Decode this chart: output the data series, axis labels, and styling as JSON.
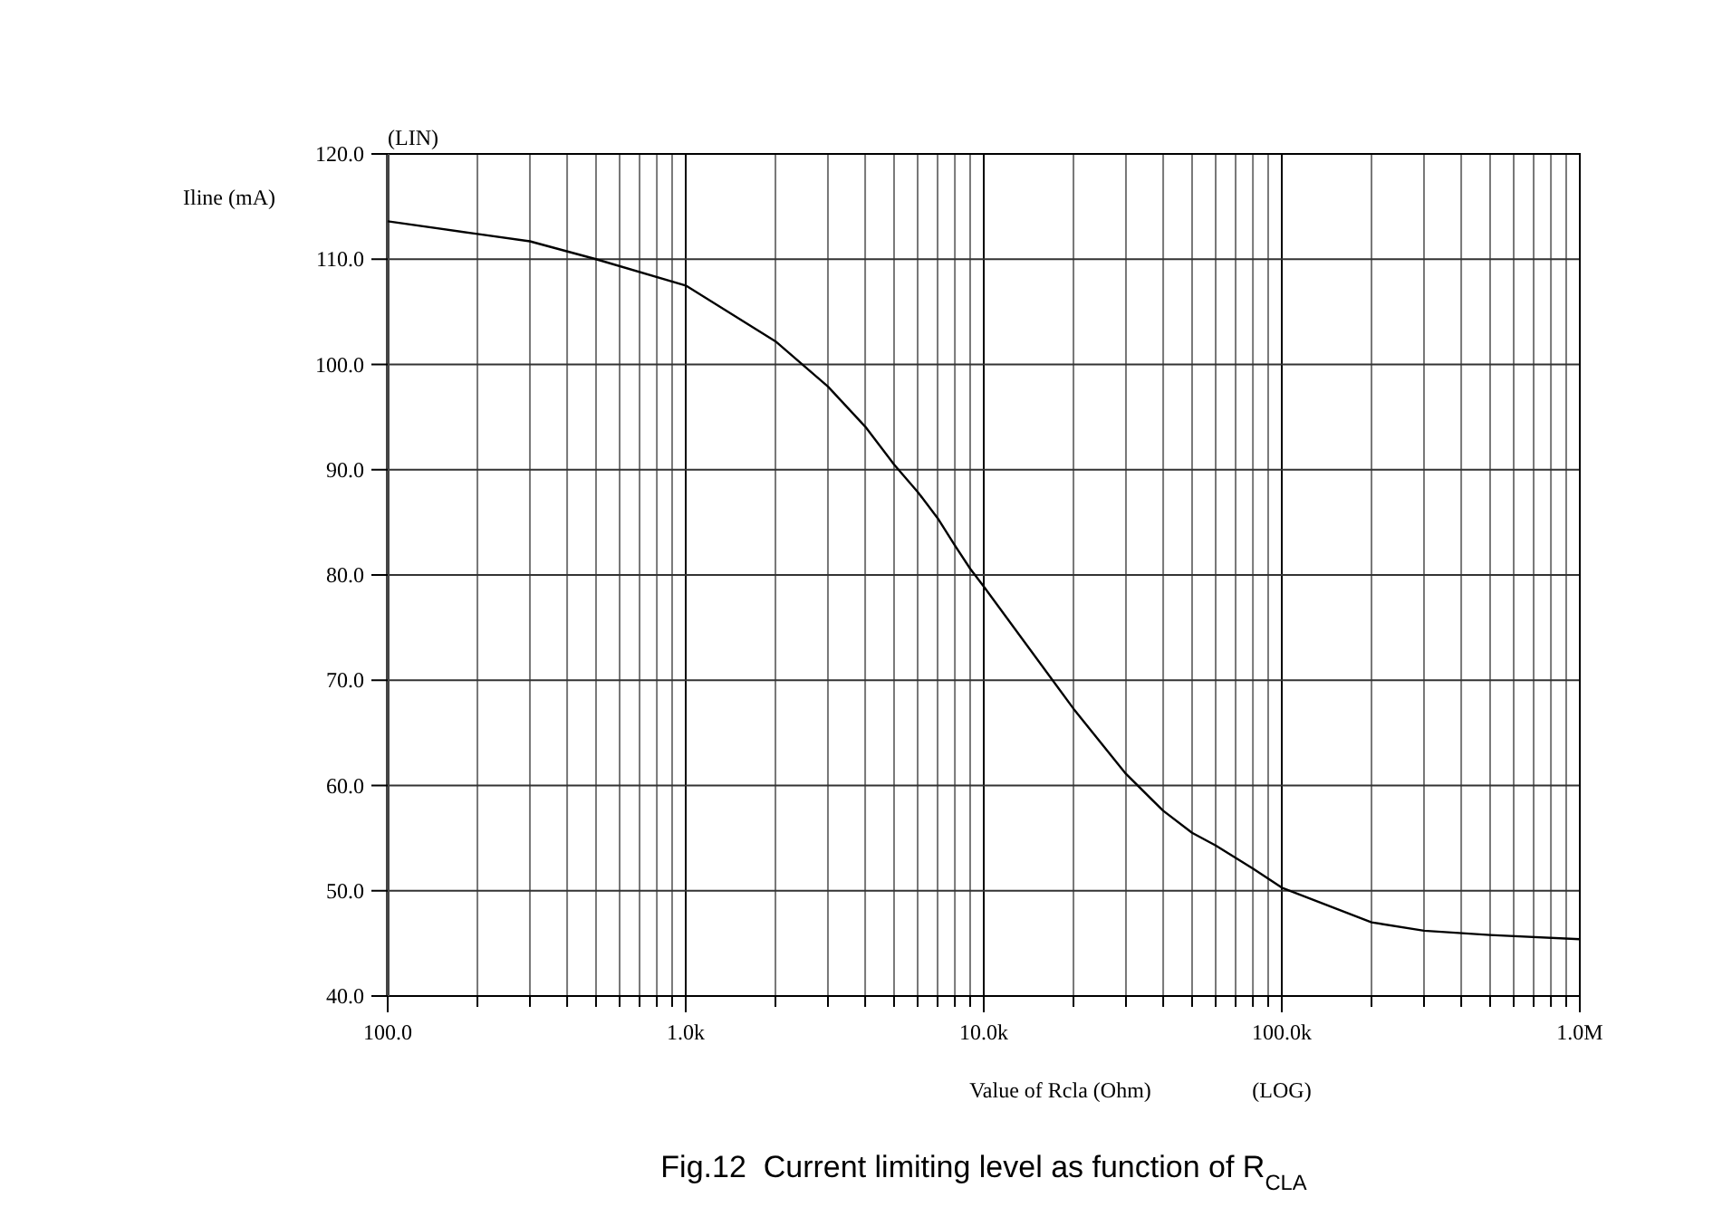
{
  "chart_data": {
    "type": "line",
    "title": "Fig.12  Current limiting level as function of R$_{CLA}$",
    "xlabel": "Value of Rcla (Ohm)",
    "ylabel": "Iline (mA)",
    "annotations": [
      "(LIN)",
      "(LOG)"
    ],
    "log": "x",
    "grid": true,
    "marker": "none",
    "line_style": "solid",
    "xlim": [
      100,
      1000000
    ],
    "ylim": [
      40,
      120
    ],
    "xticks": [
      {
        "value": 100,
        "label": "100.0"
      },
      {
        "value": 200,
        "label": null
      },
      {
        "value": 300,
        "label": null
      },
      {
        "value": 400,
        "label": null
      },
      {
        "value": 500,
        "label": null
      },
      {
        "value": 600,
        "label": null
      },
      {
        "value": 700,
        "label": null
      },
      {
        "value": 800,
        "label": null
      },
      {
        "value": 900,
        "label": null
      },
      {
        "value": 1000,
        "label": "1.0k"
      },
      {
        "value": 2000,
        "label": null
      },
      {
        "value": 3000,
        "label": null
      },
      {
        "value": 4000,
        "label": null
      },
      {
        "value": 5000,
        "label": null
      },
      {
        "value": 6000,
        "label": null
      },
      {
        "value": 7000,
        "label": null
      },
      {
        "value": 8000,
        "label": null
      },
      {
        "value": 9000,
        "label": null
      },
      {
        "value": 10000,
        "label": "10.0k"
      },
      {
        "value": 20000,
        "label": null
      },
      {
        "value": 30000,
        "label": null
      },
      {
        "value": 40000,
        "label": null
      },
      {
        "value": 50000,
        "label": null
      },
      {
        "value": 60000,
        "label": null
      },
      {
        "value": 70000,
        "label": null
      },
      {
        "value": 80000,
        "label": null
      },
      {
        "value": 90000,
        "label": null
      },
      {
        "value": 100000,
        "label": "100.0k"
      },
      {
        "value": 200000,
        "label": null
      },
      {
        "value": 300000,
        "label": null
      },
      {
        "value": 400000,
        "label": null
      },
      {
        "value": 500000,
        "label": null
      },
      {
        "value": 600000,
        "label": null
      },
      {
        "value": 700000,
        "label": null
      },
      {
        "value": 800000,
        "label": null
      },
      {
        "value": 900000,
        "label": null
      },
      {
        "value": 1000000,
        "label": "1.0M"
      }
    ],
    "yticks": [
      {
        "value": 40,
        "label": "40.0"
      },
      {
        "value": 50,
        "label": "50.0"
      },
      {
        "value": 60,
        "label": "60.0"
      },
      {
        "value": 70,
        "label": "70.0"
      },
      {
        "value": 80,
        "label": "80.0"
      },
      {
        "value": 90,
        "label": "90.0"
      },
      {
        "value": 100,
        "label": "100.0"
      },
      {
        "value": 110,
        "label": "110.0"
      },
      {
        "value": 120,
        "label": "120.0"
      }
    ],
    "series": [
      {
        "color": "#000000",
        "x": [
          100,
          200,
          300,
          500,
          1000,
          2000,
          3000,
          4000,
          5000,
          6000,
          7000,
          8000,
          9000,
          10000,
          20000,
          30000,
          40000,
          50000,
          60000,
          80000,
          100000,
          200000,
          300000,
          500000,
          1000000
        ],
        "values": [
          113.6,
          112.4,
          111.7,
          110.0,
          107.5,
          102.2,
          97.9,
          94.1,
          90.5,
          87.9,
          85.4,
          82.8,
          80.6,
          78.9,
          67.3,
          61.1,
          57.6,
          55.5,
          54.3,
          52.1,
          50.3,
          47.0,
          46.2,
          45.8,
          45.4
        ]
      }
    ]
  }
}
